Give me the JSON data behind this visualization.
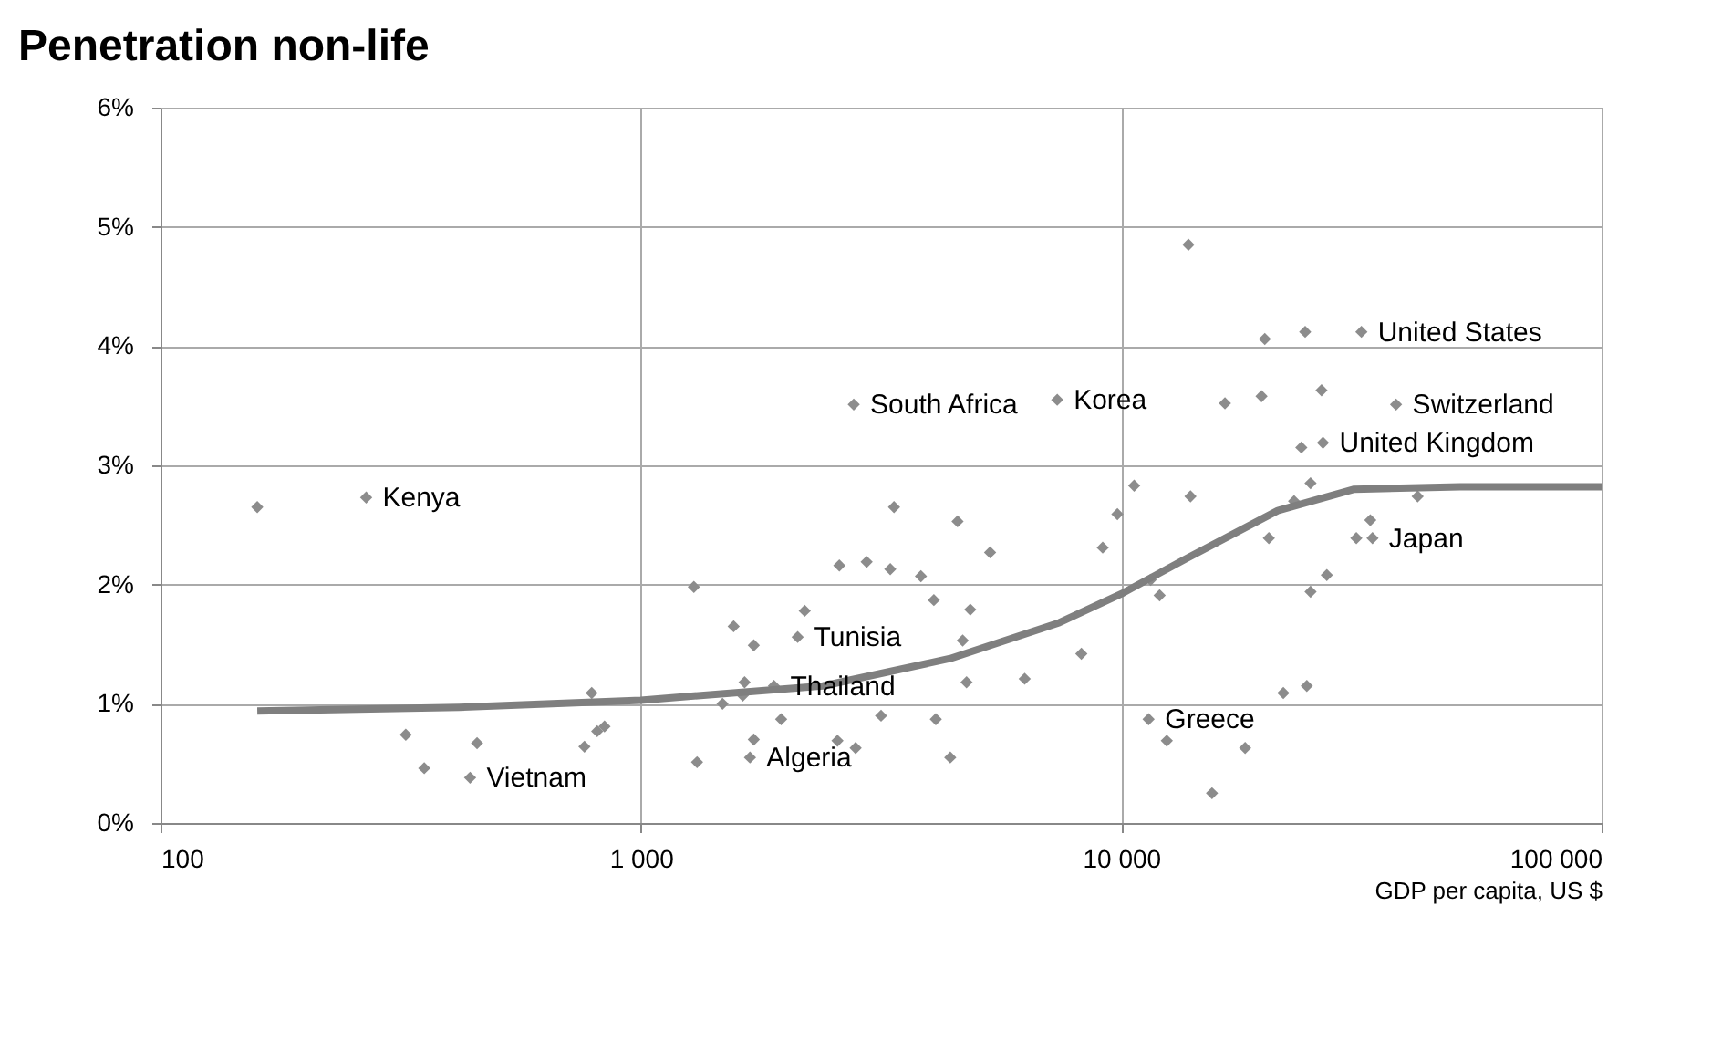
{
  "chart_data": {
    "type": "scatter",
    "title": "Penetration non-life",
    "xlabel": "GDP per capita, US $",
    "log": "x",
    "grid": true,
    "xlim": [
      100,
      100000
    ],
    "xticks": [
      100,
      {
        "value": 1000,
        "label": "1 000"
      },
      {
        "value": 10000,
        "label": "10 000"
      },
      {
        "value": 100000,
        "label": "100 000"
      }
    ],
    "ylim": [
      0,
      6
    ],
    "yticks": [
      {
        "value": 0,
        "label": "0%"
      },
      {
        "value": 1,
        "label": "1%"
      },
      {
        "value": 2,
        "label": "2%"
      },
      {
        "value": 3,
        "label": "3%"
      },
      {
        "value": 4,
        "label": "4%"
      },
      {
        "value": 5,
        "label": "5%"
      },
      {
        "value": 6,
        "label": "6%"
      }
    ],
    "series": [
      {
        "marker": "diamond",
        "color": "#8c8c8c",
        "x": [
          159,
          268,
          324,
          354,
          456,
          441,
          763,
          790,
          840,
          811,
          1309,
          1289,
          2774,
          7358,
          3365,
          4563,
          5333,
          2589,
          2951,
          3305,
          3828,
          4073,
          4850,
          2193,
          1560,
          1718,
          2120,
          4677,
          8260,
          4764,
          6295,
          1644,
          1892,
          1479,
          1630,
          3162,
          1959,
          4111,
          1718,
          2566,
          2799,
          1687,
          4406,
          10640,
          9817,
          9150,
          13936,
          11510,
          12020,
          13800,
          19900,
          24150,
          31620,
          16440,
          19590,
          26120,
          37330,
          23710,
          26300,
          24780,
          22900,
          41400,
          33000,
          30860,
          33350,
          20290,
          26790,
          24780,
          24340,
          21750,
          11400,
          12440,
          18110,
          15450
        ],
        "values": [
          2.65,
          2.73,
          0.74,
          0.46,
          0.67,
          0.38,
          0.64,
          1.09,
          0.81,
          0.77,
          0.51,
          1.98,
          3.51,
          3.55,
          2.65,
          2.53,
          2.27,
          2.16,
          2.19,
          2.13,
          2.07,
          1.87,
          1.79,
          1.78,
          1.65,
          1.49,
          1.56,
          1.53,
          1.42,
          1.18,
          1.21,
          1.18,
          1.15,
          1.0,
          1.07,
          0.9,
          0.87,
          0.87,
          0.7,
          0.69,
          0.63,
          0.55,
          0.55,
          2.83,
          2.59,
          2.31,
          2.74,
          2.04,
          1.91,
          4.85,
          4.06,
          4.12,
          4.12,
          3.52,
          3.58,
          3.63,
          3.51,
          3.15,
          3.19,
          2.85,
          2.7,
          2.74,
          2.54,
          2.39,
          2.39,
          2.39,
          2.08,
          1.94,
          1.15,
          1.09,
          0.87,
          0.69,
          0.63,
          0.25
        ]
      },
      {
        "type": "line",
        "marker": "none",
        "line_style": "solid",
        "color": "#7f7f7f",
        "x": [
          159,
          418,
          1000,
          2392,
          4406,
          7430,
          10090,
          13680,
          21170,
          30550,
          50700,
          100000
        ],
        "values": [
          0.94,
          0.97,
          1.03,
          1.15,
          1.38,
          1.68,
          1.93,
          2.22,
          2.62,
          2.8,
          2.82,
          2.82
        ]
      }
    ],
    "annotations": [
      {
        "text": "Kenya",
        "x": 268,
        "y": 2.73
      },
      {
        "text": "Vietnam",
        "x": 441,
        "y": 0.38
      },
      {
        "text": "South Africa",
        "x": 2774,
        "y": 3.51
      },
      {
        "text": "Korea",
        "x": 7358,
        "y": 3.55
      },
      {
        "text": "Tunisia",
        "x": 2120,
        "y": 1.56
      },
      {
        "text": "Thailand",
        "x": 1892,
        "y": 1.15
      },
      {
        "text": "Algeria",
        "x": 1687,
        "y": 0.55
      },
      {
        "text": "Greece",
        "x": 11400,
        "y": 0.87
      },
      {
        "text": "United States",
        "x": 31620,
        "y": 4.12
      },
      {
        "text": "Switzerland",
        "x": 37330,
        "y": 3.51
      },
      {
        "text": "United Kingdom",
        "x": 26300,
        "y": 3.19
      },
      {
        "text": "Japan",
        "x": 33350,
        "y": 2.39
      }
    ]
  }
}
